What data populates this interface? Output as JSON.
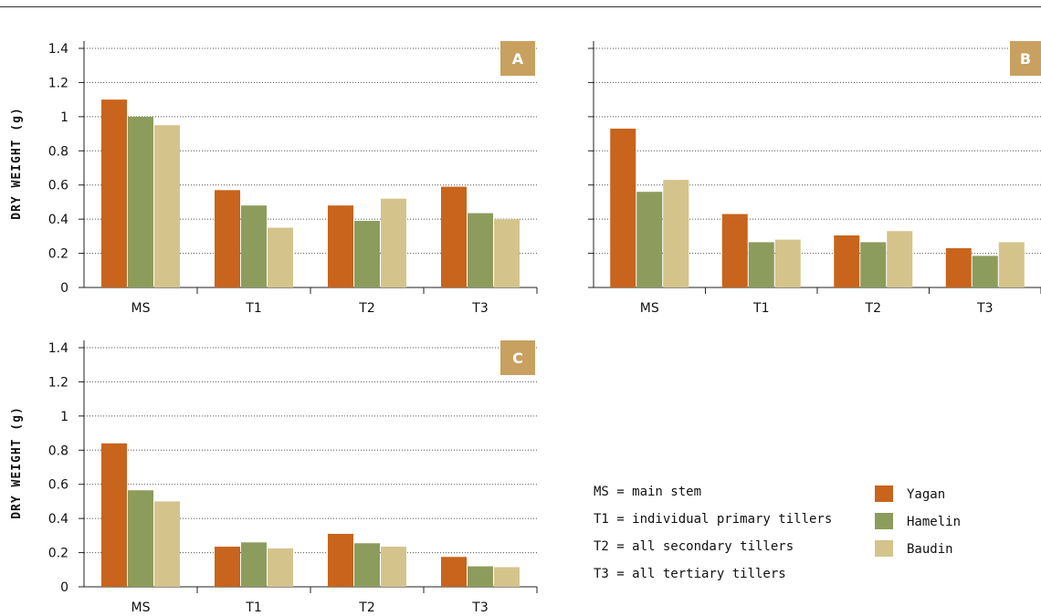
{
  "colors": {
    "Yagan": "#c8641c",
    "Hamelin": "#8c9c5c",
    "Baudin": "#d4c48c",
    "badge": "#c8a060",
    "grid": "#555555"
  },
  "legend": {
    "definitions": [
      "MS = main stem",
      "T1 = individual primary tillers",
      "T2 = all secondary tillers",
      "T3 = all tertiary tillers"
    ],
    "series": [
      "Yagan",
      "Hamelin",
      "Baudin"
    ]
  },
  "chart_data": [
    {
      "type": "bar",
      "panel": "A",
      "ylabel": "DRY WEIGHT (g)",
      "ylim": [
        0,
        1.4
      ],
      "yticks": [
        "0",
        "0.2",
        "0.4",
        "0.6",
        "0.8",
        "1",
        "1.2",
        "1.4"
      ],
      "grid": true,
      "categories": [
        "MS",
        "T1",
        "T2",
        "T3"
      ],
      "series": [
        {
          "name": "Yagan",
          "values": [
            1.1,
            0.57,
            0.48,
            0.59
          ]
        },
        {
          "name": "Hamelin",
          "values": [
            1.0,
            0.48,
            0.39,
            0.435
          ]
        },
        {
          "name": "Baudin",
          "values": [
            0.95,
            0.35,
            0.52,
            0.4
          ]
        }
      ]
    },
    {
      "type": "bar",
      "panel": "B",
      "ylabel": "",
      "ylim": [
        0,
        1.4
      ],
      "yticks": [
        "",
        "",
        "",
        "",
        "",
        "",
        "",
        ""
      ],
      "grid": true,
      "categories": [
        "MS",
        "T1",
        "T2",
        "T3"
      ],
      "series": [
        {
          "name": "Yagan",
          "values": [
            0.93,
            0.43,
            0.305,
            0.23
          ]
        },
        {
          "name": "Hamelin",
          "values": [
            0.56,
            0.265,
            0.265,
            0.185
          ]
        },
        {
          "name": "Baudin",
          "values": [
            0.63,
            0.28,
            0.33,
            0.265
          ]
        }
      ]
    },
    {
      "type": "bar",
      "panel": "C",
      "ylabel": "DRY WEIGHT (g)",
      "ylim": [
        0,
        1.4
      ],
      "yticks": [
        "0",
        "0.2",
        "0.4",
        "0.6",
        "0.8",
        "1",
        "1.2",
        "1.4"
      ],
      "grid": true,
      "categories": [
        "MS",
        "T1",
        "T2",
        "T3"
      ],
      "series": [
        {
          "name": "Yagan",
          "values": [
            0.84,
            0.235,
            0.31,
            0.175
          ]
        },
        {
          "name": "Hamelin",
          "values": [
            0.565,
            0.26,
            0.255,
            0.12
          ]
        },
        {
          "name": "Baudin",
          "values": [
            0.5,
            0.225,
            0.235,
            0.115
          ]
        }
      ]
    }
  ]
}
